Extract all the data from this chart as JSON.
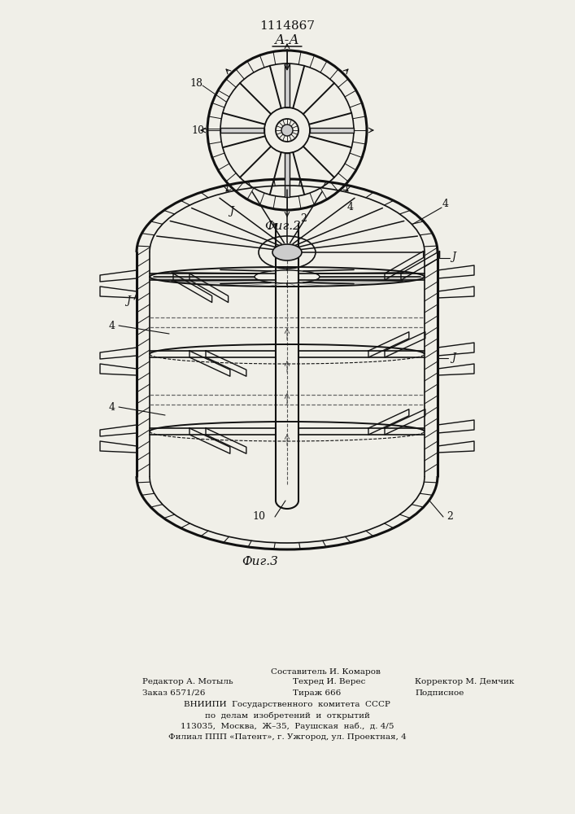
{
  "patent_number": "1114867",
  "fig2_label": "А-А",
  "fig2_caption": "Фиг.2",
  "fig3_caption": "Фиг.3",
  "footer_lines": [
    "Составитель И. Комаров",
    "Редактор А. Мотыль",
    "Техред И. Верес",
    "Корректор М. Демчик",
    "Заказ 6571/26",
    "Тираж 666",
    "Подписное",
    "ВНИИПИ  Государственного  комитета  СССР",
    "по  делам  изобретений  и  открытий",
    "113035,  Москва,  Ж–35,  Раушская  наб.,  д. 4/5",
    "Филиал ППП «Патент», г. Ужгород, ул. Проектная, 4"
  ],
  "bg_color": "#f0efe8",
  "line_color": "#111111"
}
